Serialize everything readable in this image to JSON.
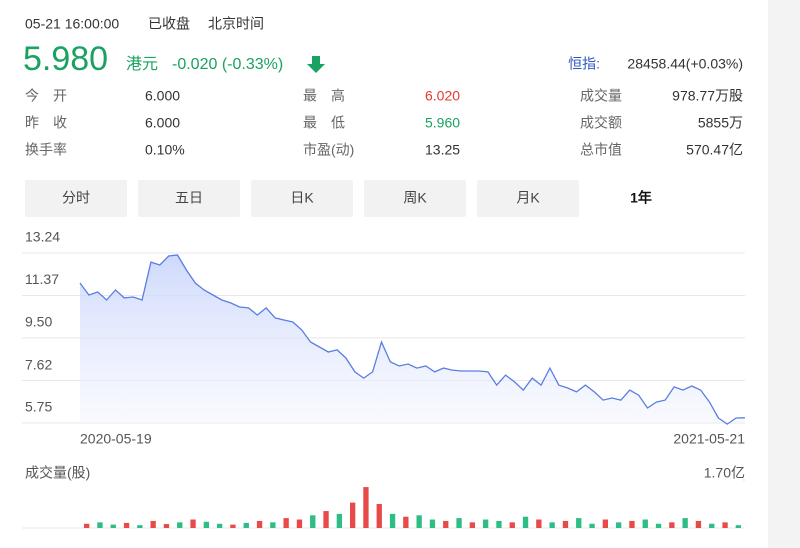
{
  "header": {
    "time": "05-21 16:00:00",
    "status": "已收盘",
    "zone": "北京时间"
  },
  "quote": {
    "price": "5.980",
    "currency": "港元",
    "change": "-0.020 (-0.33%)",
    "index_label": "恒指:",
    "index_value": "28458.44(+0.03%)"
  },
  "stats": [
    [
      [
        "今开",
        "6.000"
      ],
      [
        "最高",
        "6.020"
      ],
      [
        "成交量",
        "978.77万股"
      ]
    ],
    [
      [
        "昨收",
        "6.000"
      ],
      [
        "最低",
        "5.960"
      ],
      [
        "成交额",
        "5855万"
      ]
    ],
    [
      [
        "换手率",
        "0.10%"
      ],
      [
        "市盈(动)",
        "13.25"
      ],
      [
        "总市值",
        "570.47亿"
      ]
    ]
  ],
  "tabs": [
    "分时",
    "五日",
    "日K",
    "周K",
    "月K",
    "1年"
  ],
  "chart_data": [
    {
      "type": "line",
      "color": "#5b7ee0",
      "categories": [
        "2020-05-19",
        null,
        null,
        null,
        null,
        null,
        null,
        null,
        null,
        null,
        null,
        null,
        null,
        null,
        null,
        null,
        null,
        null,
        null,
        null,
        null,
        null,
        null,
        null,
        null,
        null,
        null,
        null,
        null,
        null,
        null,
        null,
        null,
        null,
        null,
        null,
        null,
        null,
        null,
        null,
        null,
        null,
        null,
        null,
        null,
        null,
        null,
        null,
        null,
        null,
        null,
        null,
        null,
        null,
        null,
        null,
        null,
        null,
        null,
        null,
        null,
        null,
        null,
        null,
        null,
        null,
        null,
        null,
        null,
        null,
        null,
        null,
        null,
        null,
        null,
        "2021-05-21"
      ],
      "values": [
        11.92,
        11.39,
        11.52,
        11.17,
        11.61,
        11.26,
        11.3,
        11.17,
        12.84,
        12.71,
        13.11,
        13.15,
        12.49,
        11.92,
        11.61,
        11.39,
        11.17,
        11.04,
        10.86,
        10.82,
        10.51,
        10.82,
        10.38,
        10.29,
        10.2,
        9.85,
        9.32,
        9.1,
        8.88,
        8.97,
        8.61,
        8.0,
        7.73,
        8.0,
        9.32,
        8.44,
        8.26,
        8.35,
        8.17,
        8.26,
        8.0,
        8.17,
        8.08,
        8.04,
        8.04,
        8.04,
        8.0,
        7.42,
        7.86,
        7.56,
        7.2,
        7.73,
        7.42,
        8.17,
        7.42,
        7.29,
        7.12,
        7.42,
        7.12,
        6.76,
        6.85,
        6.76,
        7.2,
        6.98,
        6.41,
        6.67,
        6.76,
        7.34,
        7.2,
        7.38,
        7.2,
        6.67,
        5.97,
        5.7,
        5.97,
        5.98
      ],
      "ylim": [
        5.75,
        13.24
      ],
      "yticks": [
        13.24,
        11.37,
        {
          "value": 9.5,
          "label": "9.50"
        },
        7.62,
        5.75
      ],
      "grid": true
    },
    {
      "type": "bar",
      "title": "成交量(股)",
      "values": [
        0.15,
        0.2,
        0.12,
        0.18,
        0.1,
        0.25,
        0.14,
        0.2,
        0.3,
        0.22,
        0.15,
        0.12,
        0.18,
        0.25,
        0.2,
        0.35,
        0.3,
        0.45,
        0.6,
        0.5,
        0.9,
        1.45,
        0.85,
        0.5,
        0.4,
        0.45,
        0.3,
        0.25,
        0.35,
        0.2,
        0.3,
        0.25,
        0.2,
        0.4,
        0.3,
        0.2,
        0.25,
        0.35,
        0.15,
        0.3,
        0.2,
        0.25,
        0.3,
        0.15,
        0.2,
        0.35,
        0.25,
        0.15,
        0.2,
        0.1
      ],
      "colors": [
        "#e84a4a",
        "#2ebd85",
        "#2ebd85",
        "#e84a4a",
        "#2ebd85",
        "#e84a4a",
        "#e84a4a",
        "#2ebd85",
        "#e84a4a",
        "#2ebd85",
        "#2ebd85",
        "#e84a4a",
        "#2ebd85",
        "#e84a4a",
        "#2ebd85",
        "#e84a4a",
        "#e84a4a",
        "#2ebd85",
        "#e84a4a",
        "#2ebd85",
        "#e84a4a",
        "#e84a4a",
        "#e84a4a",
        "#2ebd85",
        "#e84a4a",
        "#2ebd85",
        "#2ebd85",
        "#e84a4a",
        "#2ebd85",
        "#e84a4a",
        "#2ebd85",
        "#2ebd85",
        "#e84a4a",
        "#2ebd85",
        "#e84a4a",
        "#2ebd85",
        "#e84a4a",
        "#2ebd85",
        "#2ebd85",
        "#e84a4a",
        "#2ebd85",
        "#e84a4a",
        "#2ebd85",
        "#2ebd85",
        "#e84a4a",
        "#2ebd85",
        "#e84a4a",
        "#2ebd85",
        "#e84a4a",
        "#2ebd85"
      ],
      "ylim": [
        0,
        1.7
      ],
      "yticks": [
        {
          "value": 1.7,
          "label": "1.70亿"
        }
      ]
    }
  ]
}
